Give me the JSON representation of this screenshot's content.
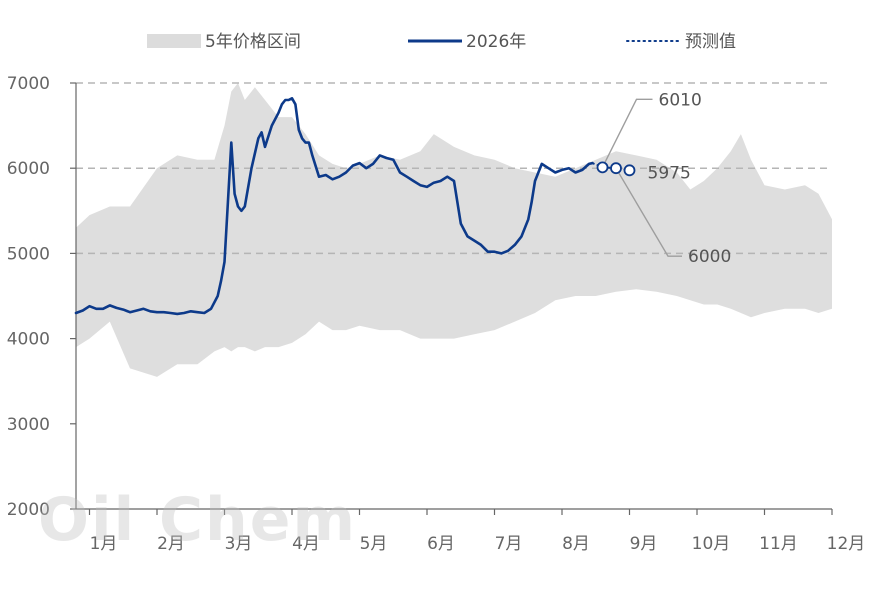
{
  "chart_data": {
    "type": "line",
    "title": "",
    "ylim": [
      2000,
      7000
    ],
    "yticks": [
      2000,
      3000,
      4000,
      5000,
      6000,
      7000
    ],
    "grid_values": [
      5000,
      6000,
      7000
    ],
    "legend_position": "top",
    "x_range": [
      0.8,
      12.0
    ],
    "x_ticks": [
      {
        "label": "1月",
        "x": 1
      },
      {
        "label": "2月",
        "x": 2
      },
      {
        "label": "3月",
        "x": 3
      },
      {
        "label": "4月",
        "x": 4
      },
      {
        "label": "5月",
        "x": 5
      },
      {
        "label": "6月",
        "x": 6
      },
      {
        "label": "7月",
        "x": 7
      },
      {
        "label": "8月",
        "x": 8
      },
      {
        "label": "9月",
        "x": 9
      },
      {
        "label": "10月",
        "x": 10
      },
      {
        "label": "11月",
        "x": 11
      },
      {
        "label": "12月",
        "x": 12
      }
    ],
    "legend": [
      {
        "label": "5年价格区间",
        "kind": "band",
        "color": "#dcdcdc"
      },
      {
        "label": "2026年",
        "kind": "line",
        "color": "#0d3a8a"
      },
      {
        "label": "预测值",
        "kind": "dotted",
        "color": "#0d3a8a"
      }
    ],
    "range_band": {
      "x": [
        0.8,
        1.0,
        1.3,
        1.6,
        2.0,
        2.3,
        2.6,
        2.85,
        3.0,
        3.1,
        3.2,
        3.3,
        3.45,
        3.6,
        3.8,
        4.0,
        4.2,
        4.4,
        4.6,
        4.8,
        5.0,
        5.3,
        5.6,
        5.9,
        6.1,
        6.4,
        6.7,
        7.0,
        7.3,
        7.6,
        7.9,
        8.2,
        8.5,
        8.8,
        9.1,
        9.4,
        9.7,
        9.9,
        10.1,
        10.3,
        10.5,
        10.65,
        10.8,
        11.0,
        11.3,
        11.6,
        11.8,
        12.0
      ],
      "upper": [
        5300,
        5450,
        5550,
        5550,
        6000,
        6150,
        6100,
        6100,
        6500,
        6900,
        7000,
        6800,
        6950,
        6800,
        6600,
        6600,
        6400,
        6150,
        6050,
        6000,
        6050,
        6150,
        6100,
        6200,
        6400,
        6250,
        6150,
        6100,
        6000,
        5950,
        5900,
        6000,
        6100,
        6200,
        6150,
        6100,
        5950,
        5750,
        5850,
        6000,
        6200,
        6400,
        6100,
        5800,
        5750,
        5800,
        5700,
        5400
      ],
      "lower": [
        3900,
        4000,
        4200,
        3650,
        3550,
        3700,
        3700,
        3850,
        3900,
        3850,
        3900,
        3900,
        3850,
        3900,
        3900,
        3950,
        4050,
        4200,
        4100,
        4100,
        4150,
        4100,
        4100,
        4000,
        4000,
        4000,
        4050,
        4100,
        4200,
        4300,
        4450,
        4500,
        4500,
        4550,
        4580,
        4550,
        4500,
        4450,
        4400,
        4400,
        4350,
        4300,
        4250,
        4300,
        4350,
        4350,
        4300,
        4350
      ]
    },
    "series": [
      {
        "name": "2026年",
        "style": "solid",
        "color": "#0d3a8a",
        "x": [
          0.8,
          0.9,
          1.0,
          1.1,
          1.2,
          1.3,
          1.4,
          1.5,
          1.6,
          1.7,
          1.8,
          1.9,
          2.0,
          2.1,
          2.2,
          2.3,
          2.4,
          2.5,
          2.6,
          2.7,
          2.8,
          2.9,
          2.95,
          3.0,
          3.05,
          3.1,
          3.15,
          3.2,
          3.25,
          3.3,
          3.4,
          3.5,
          3.55,
          3.6,
          3.7,
          3.8,
          3.85,
          3.9,
          3.95,
          4.0,
          4.05,
          4.1,
          4.15,
          4.2,
          4.25,
          4.3,
          4.4,
          4.5,
          4.6,
          4.7,
          4.8,
          4.9,
          5.0,
          5.1,
          5.2,
          5.3,
          5.4,
          5.5,
          5.6,
          5.7,
          5.8,
          5.9,
          6.0,
          6.1,
          6.2,
          6.3,
          6.4,
          6.5,
          6.6,
          6.7,
          6.8,
          6.9,
          7.0,
          7.1,
          7.2,
          7.3,
          7.4,
          7.5,
          7.55,
          7.6,
          7.7,
          7.8,
          7.9,
          8.0,
          8.1,
          8.2,
          8.3,
          8.4,
          8.45
        ],
        "y": [
          4300,
          4330,
          4380,
          4350,
          4350,
          4390,
          4360,
          4340,
          4310,
          4330,
          4350,
          4320,
          4310,
          4310,
          4300,
          4290,
          4300,
          4320,
          4310,
          4300,
          4350,
          4500,
          4680,
          4900,
          5600,
          6300,
          5700,
          5550,
          5500,
          5550,
          6000,
          6350,
          6420,
          6250,
          6500,
          6650,
          6750,
          6800,
          6800,
          6820,
          6750,
          6450,
          6350,
          6300,
          6300,
          6150,
          5900,
          5920,
          5870,
          5900,
          5950,
          6030,
          6060,
          6000,
          6050,
          6150,
          6120,
          6100,
          5950,
          5900,
          5850,
          5800,
          5780,
          5830,
          5850,
          5900,
          5850,
          5350,
          5200,
          5150,
          5100,
          5020,
          5020,
          5000,
          5030,
          5100,
          5200,
          5400,
          5600,
          5850,
          6050,
          6000,
          5950,
          5980,
          6000,
          5950,
          5980,
          6050,
          6060
        ]
      },
      {
        "name": "预测值",
        "style": "dotted",
        "color": "#0d3a8a",
        "x": [
          8.45,
          8.6,
          8.8,
          9.0
        ],
        "y": [
          6060,
          6010,
          6000,
          5975
        ]
      }
    ],
    "forecast_points": [
      {
        "x": 8.6,
        "y": 6010,
        "label": "6010"
      },
      {
        "x": 8.8,
        "y": 6000,
        "label": "6000"
      },
      {
        "x": 9.0,
        "y": 5975,
        "label": "5975"
      }
    ]
  },
  "watermark_text": "Oil Chem"
}
